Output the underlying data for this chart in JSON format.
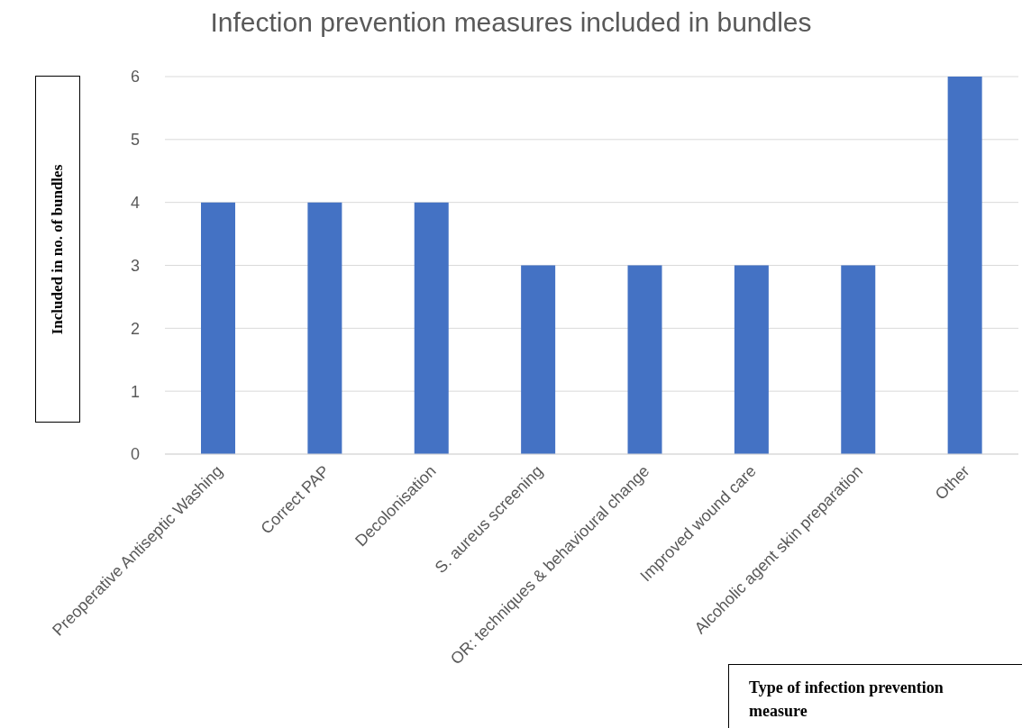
{
  "chart_data": {
    "type": "bar",
    "title": "Infection prevention measures included in bundles",
    "xlabel": "Type of infection prevention measure",
    "ylabel": "Included in no. of bundles",
    "categories": [
      "Preoperative Antiseptic Washing",
      "Correct PAP",
      "Decolonisation",
      "S. aureus screening",
      "OR: techniques & behavioural change",
      "Improved wound care",
      "Alcoholic agent skin preparation",
      "Other"
    ],
    "values": [
      4,
      4,
      4,
      3,
      3,
      3,
      3,
      6
    ],
    "color": "#4472c4",
    "ylim": [
      0,
      6
    ],
    "yticks": [
      0,
      1,
      2,
      3,
      4,
      5,
      6
    ],
    "grid": "y",
    "legend": false
  }
}
